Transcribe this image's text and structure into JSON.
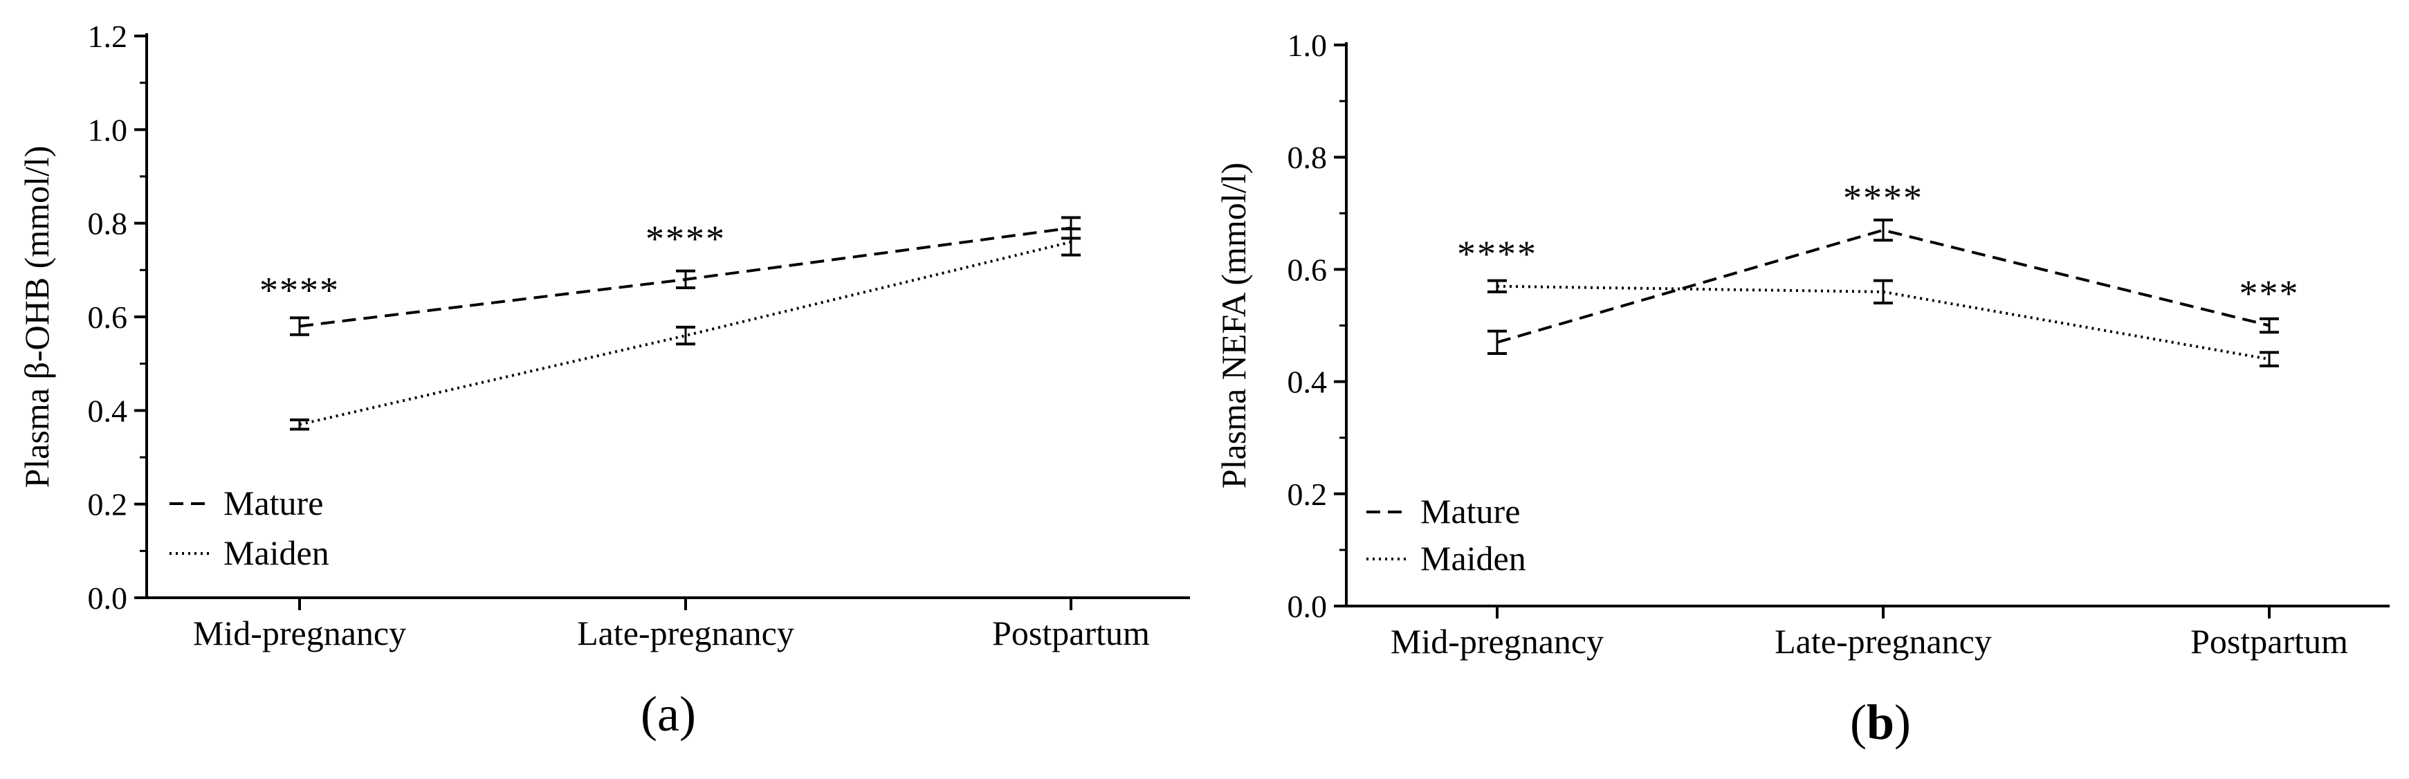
{
  "chart_data": [
    {
      "type": "line",
      "panel_label_parts": [
        "(",
        "a",
        ")"
      ],
      "ylabel": "Plasma β-OHB (mmol/l)",
      "xlabel": "",
      "ylim": [
        0,
        1.2
      ],
      "yticks": [
        "0.0",
        "0.2",
        "0.4",
        "0.6",
        "0.8",
        "1.0",
        "1.2"
      ],
      "categories": [
        "Mid-pregnancy",
        "Late-pregnancy",
        "Postpartum"
      ],
      "series": [
        {
          "name": "Mature",
          "style": "dashed",
          "values": [
            0.58,
            0.68,
            0.79
          ],
          "errors": [
            0.018,
            0.018,
            0.022
          ]
        },
        {
          "name": "Maiden",
          "style": "dotted",
          "values": [
            0.37,
            0.56,
            0.76
          ],
          "errors": [
            0.01,
            0.018,
            0.028
          ]
        }
      ],
      "annotations": [
        {
          "category": "Mid-pregnancy",
          "text": "****",
          "y": 0.66
        },
        {
          "category": "Late-pregnancy",
          "text": "****",
          "y": 0.77
        }
      ],
      "legend": "bottom-left"
    },
    {
      "type": "line",
      "panel_label_parts": [
        "(",
        "b",
        ")"
      ],
      "ylabel": "Plasma NEFA (mmol/l)",
      "xlabel": "",
      "ylim": [
        0,
        1.0
      ],
      "yticks": [
        "0.0",
        "0.2",
        "0.4",
        "0.6",
        "0.8",
        "1.0"
      ],
      "categories": [
        "Mid-pregnancy",
        "Late-pregnancy",
        "Postpartum"
      ],
      "series": [
        {
          "name": "Mature",
          "style": "dashed",
          "values": [
            0.47,
            0.67,
            0.5
          ],
          "errors": [
            0.02,
            0.018,
            0.012
          ]
        },
        {
          "name": "Maiden",
          "style": "dotted",
          "values": [
            0.57,
            0.56,
            0.44
          ],
          "errors": [
            0.01,
            0.02,
            0.012
          ]
        }
      ],
      "annotations": [
        {
          "category": "Mid-pregnancy",
          "text": "****",
          "y": 0.63
        },
        {
          "category": "Late-pregnancy",
          "text": "****",
          "y": 0.73
        },
        {
          "category": "Postpartum",
          "text": "***",
          "y": 0.56
        }
      ],
      "legend": "bottom-left"
    }
  ]
}
